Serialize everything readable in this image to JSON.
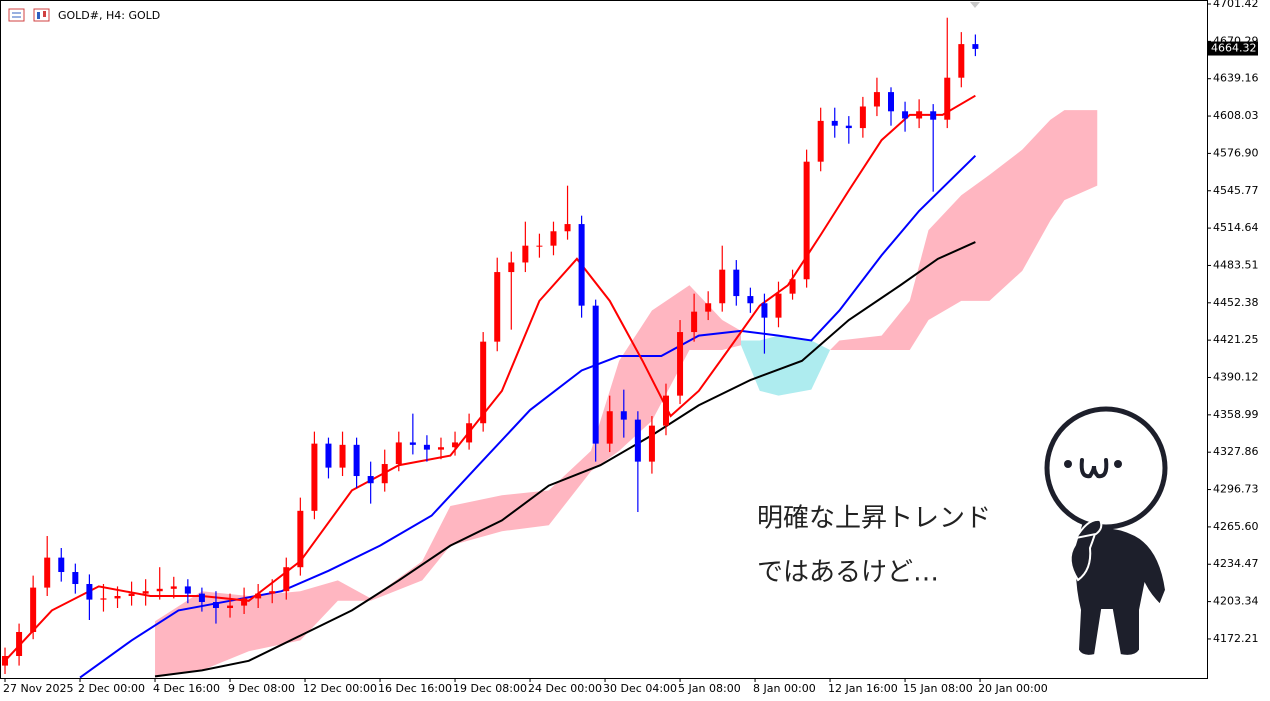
{
  "chart_data": {
    "type": "candlestick",
    "title": "GOLD#, H4:  GOLD",
    "up_color": "#ff0000",
    "down_color": "#0000ff",
    "x": [
      0,
      3,
      6,
      9,
      12,
      15,
      18,
      21,
      24,
      27,
      30,
      33,
      36,
      39,
      42,
      45,
      48,
      51,
      54,
      57,
      60,
      63,
      66,
      69,
      72,
      75,
      78,
      81,
      84,
      87,
      90,
      93,
      96,
      99,
      102,
      105,
      108,
      111,
      114,
      117,
      120,
      123,
      126,
      129,
      132,
      135,
      138,
      141,
      144,
      147,
      150,
      153,
      156,
      159,
      162,
      165,
      168,
      171,
      174,
      177,
      180,
      183,
      186,
      189,
      192,
      195,
      198,
      201,
      204,
      207
    ],
    "open": [
      4150,
      4158,
      4178,
      4215,
      4240,
      4228,
      4218,
      4205,
      4206,
      4208,
      4210,
      4212,
      4214,
      4216,
      4210,
      4203,
      4198,
      4200,
      4206,
      4210,
      4212,
      4232,
      4279,
      4335,
      4315,
      4334,
      4308,
      4302,
      4318,
      4336,
      4334,
      4330,
      4332,
      4336,
      4352,
      4420,
      4478,
      4486,
      4500,
      4500,
      4512,
      4518,
      4450,
      4335,
      4362,
      4355,
      4320,
      4350,
      4375,
      4428,
      4445,
      4452,
      4480,
      4458,
      4452,
      4440,
      4460,
      4472,
      4570,
      4604,
      4600,
      4598,
      4616,
      4628,
      4612,
      4606,
      4612,
      4605,
      4640,
      4668
    ],
    "high": [
      4165,
      4185,
      4225,
      4258,
      4248,
      4235,
      4226,
      4218,
      4216,
      4220,
      4222,
      4232,
      4224,
      4222,
      4215,
      4212,
      4210,
      4215,
      4218,
      4222,
      4240,
      4290,
      4345,
      4340,
      4345,
      4340,
      4320,
      4330,
      4345,
      4360,
      4342,
      4340,
      4345,
      4360,
      4428,
      4490,
      4495,
      4520,
      4510,
      4520,
      4550,
      4525,
      4455,
      4375,
      4380,
      4362,
      4358,
      4385,
      4438,
      4460,
      4462,
      4500,
      4488,
      4465,
      4460,
      4470,
      4480,
      4580,
      4615,
      4615,
      4608,
      4624,
      4640,
      4632,
      4620,
      4622,
      4618,
      4690,
      4678,
      4676
    ],
    "low": [
      4143,
      4150,
      4172,
      4208,
      4220,
      4210,
      4188,
      4195,
      4198,
      4200,
      4200,
      4205,
      4206,
      4202,
      4195,
      4185,
      4190,
      4193,
      4198,
      4202,
      4205,
      4225,
      4272,
      4306,
      4308,
      4298,
      4285,
      4295,
      4312,
      4326,
      4320,
      4322,
      4325,
      4330,
      4345,
      4412,
      4430,
      4478,
      4490,
      4492,
      4505,
      4440,
      4320,
      4328,
      4340,
      4278,
      4310,
      4342,
      4368,
      4420,
      4438,
      4445,
      4450,
      4444,
      4410,
      4432,
      4455,
      4465,
      4562,
      4590,
      4585,
      4590,
      4608,
      4600,
      4595,
      4598,
      4545,
      4598,
      4632,
      4658
    ],
    "close": [
      4158,
      4178,
      4215,
      4240,
      4228,
      4218,
      4205,
      4206,
      4208,
      4210,
      4212,
      4214,
      4216,
      4210,
      4203,
      4198,
      4200,
      4206,
      4210,
      4212,
      4232,
      4279,
      4335,
      4315,
      4334,
      4308,
      4302,
      4318,
      4336,
      4334,
      4330,
      4332,
      4336,
      4352,
      4420,
      4478,
      4486,
      4500,
      4500,
      4512,
      4518,
      4450,
      4335,
      4362,
      4355,
      4320,
      4350,
      4375,
      4428,
      4445,
      4452,
      4480,
      4458,
      4452,
      4440,
      4460,
      4472,
      4570,
      4604,
      4600,
      4598,
      4616,
      4628,
      4612,
      4606,
      4612,
      4605,
      4640,
      4668,
      4664
    ],
    "lines": [
      {
        "color": "#000000",
        "x": [
          32,
          42,
          52,
          63,
          74,
          84,
          95,
          106,
          116,
          127,
          138,
          148,
          159,
          170,
          180,
          191,
          199,
          207
        ],
        "values": [
          4141,
          4146,
          4154,
          4175,
          4196,
          4221,
          4250,
          4271,
          4300,
          4317,
          4342,
          4367,
          4388,
          4404,
          4438,
          4467,
          4489,
          4503
        ]
      },
      {
        "color": "#0000ff",
        "x": [
          16,
          27,
          37,
          48,
          59,
          69,
          80,
          91,
          101,
          112,
          123,
          131,
          140,
          148,
          157,
          165,
          172,
          178,
          187,
          195,
          207
        ],
        "values": [
          4140,
          4171,
          4196,
          4204,
          4212,
          4229,
          4250,
          4275,
          4317,
          4363,
          4396,
          4408,
          4408,
          4425,
          4429,
          4425,
          4421,
          4446,
          4492,
          4529,
          4575
        ]
      },
      {
        "color": "#ff0000",
        "x": [
          0,
          10,
          20,
          31,
          42,
          52,
          63,
          74,
          84,
          95,
          106,
          114,
          122,
          129,
          136,
          142,
          148,
          155,
          161,
          167,
          174,
          180,
          187,
          193,
          200,
          207
        ],
        "values": [
          4154,
          4196,
          4216,
          4208,
          4208,
          4204,
          4237,
          4296,
          4317,
          4325,
          4379,
          4454,
          4489,
          4454,
          4404,
          4358,
          4379,
          4417,
          4450,
          4467,
          4509,
          4546,
          4588,
          4609,
          4609,
          4625
        ]
      }
    ],
    "clouds": [
      {
        "color": "#ffb6c1",
        "x": [
          32,
          42,
          52,
          63,
          71,
          78,
          89,
          95,
          106,
          116,
          125,
          131,
          138,
          146,
          153,
          157
        ],
        "upper": [
          4187,
          4212,
          4208,
          4212,
          4221,
          4206,
          4237,
          4283,
          4292,
          4296,
          4329,
          4404,
          4446,
          4467,
          4438,
          4429
        ],
        "lower": [
          4140,
          4146,
          4162,
          4171,
          4204,
          4204,
          4221,
          4250,
          4262,
          4267,
          4312,
          4329,
          4354,
          4413,
          4413,
          4417
        ]
      },
      {
        "color": "#aeecef",
        "x": [
          157,
          161,
          165,
          172,
          176
        ],
        "upper": [
          4421,
          4421,
          4425,
          4421,
          4413
        ],
        "lower": [
          4417,
          4379,
          4375,
          4380,
          4413
        ]
      },
      {
        "color": "#ffb6c1",
        "x": [
          176,
          178,
          187,
          193,
          197,
          204,
          210,
          217,
          223,
          226,
          233
        ],
        "upper": [
          4413,
          4421,
          4425,
          4454,
          4513,
          4542,
          4559,
          4580,
          4605,
          4613,
          4613
        ],
        "lower": [
          4413,
          4413,
          4413,
          4413,
          4438,
          4454,
          4454,
          4479,
          4521,
          4538,
          4550
        ]
      }
    ],
    "xlim": [
      -1.07,
      256.41
    ],
    "ylim": [
      4139.66,
      4704.76
    ],
    "xticks": [
      {
        "value": 0,
        "label": "27 Nov 2025"
      },
      {
        "value": 16,
        "label": "2 Dec 00:00"
      },
      {
        "value": 32,
        "label": "4 Dec 16:00"
      },
      {
        "value": 48,
        "label": "9 Dec 08:00"
      },
      {
        "value": 64,
        "label": "12 Dec 00:00"
      },
      {
        "value": 80,
        "label": "16 Dec 16:00"
      },
      {
        "value": 96,
        "label": "19 Dec 08:00"
      },
      {
        "value": 112,
        "label": "24 Dec 00:00"
      },
      {
        "value": 128,
        "label": "30 Dec 04:00"
      },
      {
        "value": 144,
        "label": "5 Jan 08:00"
      },
      {
        "value": 160,
        "label": "8 Jan 00:00"
      },
      {
        "value": 176,
        "label": "12 Jan 16:00"
      },
      {
        "value": 192,
        "label": "15 Jan 08:00"
      },
      {
        "value": 208,
        "label": "20 Jan 00:00"
      }
    ],
    "yticks": [
      4701.42,
      4670.29,
      4639.16,
      4608.03,
      {
        "value": 4576.9,
        "label": "4576.90"
      },
      4545.77,
      4514.64,
      4483.51,
      4452.38,
      4421.25,
      4390.12,
      4358.99,
      4327.86,
      4296.73,
      {
        "value": 4265.6,
        "label": "4265.60"
      },
      4234.47,
      4203.34,
      4172.21
    ],
    "last_price": 4664.32,
    "annotations": [
      "明確な上昇トレンド",
      "ではあるけど…"
    ]
  }
}
